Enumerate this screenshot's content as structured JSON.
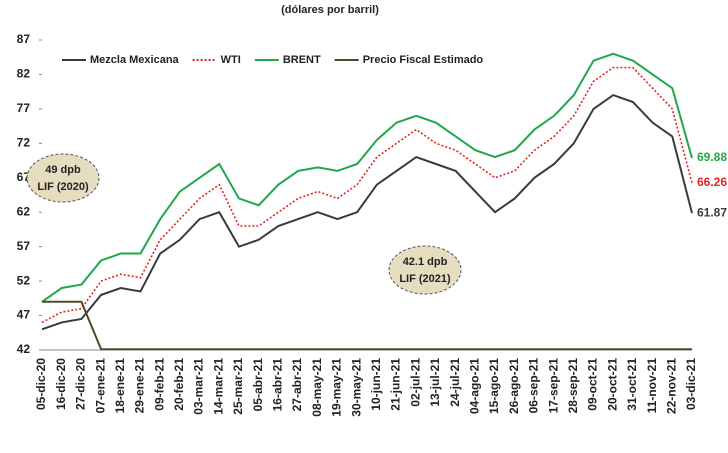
{
  "chart_data": {
    "type": "line",
    "subtitle": "(dólares por barril)",
    "categories": [
      "05-dic-20",
      "16-dic-20",
      "27-dic-20",
      "07-ene-21",
      "18-ene-21",
      "29-ene-21",
      "09-feb-21",
      "20-feb-21",
      "03-mar-21",
      "14-mar-21",
      "25-mar-21",
      "05-abr-21",
      "16-abr-21",
      "27-abr-21",
      "08-may-21",
      "19-may-21",
      "30-may-21",
      "10-jun-21",
      "21-jun-21",
      "02-jul-21",
      "13-jul-21",
      "24-jul-21",
      "04-ago-21",
      "15-ago-21",
      "26-ago-21",
      "06-sep-21",
      "17-sep-21",
      "28-sep-21",
      "09-oct-21",
      "20-oct-21",
      "31-oct-21",
      "11-nov-21",
      "22-nov-21",
      "03-dic-21"
    ],
    "series": [
      {
        "name": "Mezcla Mexicana",
        "color": "#3a3a3a",
        "line_style": "solid",
        "values": [
          45,
          46,
          46.5,
          50,
          51,
          50.5,
          56,
          58,
          61,
          62,
          57,
          58,
          60,
          61,
          62,
          61,
          62,
          66,
          68,
          70,
          69,
          68,
          65,
          62,
          64,
          67,
          69,
          72,
          77,
          79,
          78,
          75,
          73,
          61.87
        ]
      },
      {
        "name": "WTI",
        "color": "#e3241f",
        "line_style": "dotted",
        "values": [
          46,
          47.5,
          48,
          52,
          53,
          52.5,
          58,
          61,
          64,
          66,
          60,
          60,
          62,
          64,
          65,
          64,
          66,
          70,
          72,
          74,
          72,
          71,
          69,
          67,
          68,
          71,
          73,
          76,
          81,
          83,
          83,
          80,
          77,
          66.26
        ]
      },
      {
        "name": "BRENT",
        "color": "#1fa84a",
        "line_style": "solid",
        "values": [
          49,
          51,
          51.5,
          55,
          56,
          56,
          61,
          65,
          67,
          69,
          64,
          63,
          66,
          68,
          68.5,
          68,
          69,
          72.5,
          75,
          76,
          75,
          73,
          71,
          70,
          71,
          74,
          76,
          79,
          84,
          85,
          84,
          82,
          80,
          69.88
        ]
      },
      {
        "name": "Precio Fiscal Estimado",
        "color": "#4d4a2a",
        "line_style": "solid",
        "values": [
          49,
          49,
          49,
          42.1,
          42.1,
          42.1,
          42.1,
          42.1,
          42.1,
          42.1,
          42.1,
          42.1,
          42.1,
          42.1,
          42.1,
          42.1,
          42.1,
          42.1,
          42.1,
          42.1,
          42.1,
          42.1,
          42.1,
          42.1,
          42.1,
          42.1,
          42.1,
          42.1,
          42.1,
          42.1,
          42.1,
          42.1,
          42.1,
          42.1
        ]
      }
    ],
    "end_labels": [
      0,
      1,
      2
    ],
    "ylim": [
      42,
      87
    ],
    "yticks": [
      42,
      47,
      52,
      57,
      62,
      67,
      72,
      77,
      82,
      87
    ],
    "legend": "upper left",
    "annotations": [
      [
        "49 dpb",
        "LIF (2020)"
      ],
      [
        "42.1 dpb",
        "LIF (2021)"
      ]
    ]
  }
}
